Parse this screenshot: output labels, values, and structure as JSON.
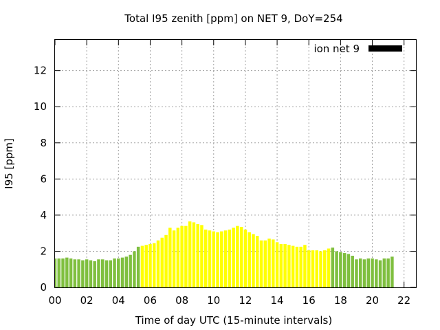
{
  "chart_data": {
    "type": "bar",
    "title": "Total I95 zenith [ppm] on NET 9, DoY=254",
    "xlabel": "Time of day UTC (15-minute intervals)",
    "ylabel": "I95 [ppm]",
    "xlim": [
      0,
      22.75
    ],
    "ylim": [
      0,
      13.7
    ],
    "xticks": [
      "00",
      "02",
      "04",
      "06",
      "08",
      "10",
      "12",
      "14",
      "16",
      "18",
      "20",
      "22"
    ],
    "yticks": [
      "0",
      "2",
      "4",
      "6",
      "8",
      "10",
      "12"
    ],
    "grid": true,
    "legend": {
      "position": "top-right",
      "label": "ion net 9",
      "color": "#000000"
    },
    "colors": {
      "low": "#7fbf3f",
      "high": "#ffff00"
    },
    "bar_interval_hours": 0.25,
    "x_start": 0,
    "values": [
      1.6,
      1.6,
      1.6,
      1.65,
      1.6,
      1.55,
      1.55,
      1.5,
      1.55,
      1.5,
      1.45,
      1.55,
      1.55,
      1.5,
      1.5,
      1.6,
      1.6,
      1.65,
      1.7,
      1.8,
      2.0,
      2.25,
      2.3,
      2.35,
      2.4,
      2.45,
      2.6,
      2.75,
      2.9,
      3.3,
      3.15,
      3.3,
      3.4,
      3.4,
      3.65,
      3.6,
      3.5,
      3.45,
      3.2,
      3.15,
      3.1,
      3.05,
      3.1,
      3.15,
      3.2,
      3.3,
      3.4,
      3.35,
      3.2,
      3.05,
      2.95,
      2.85,
      2.6,
      2.6,
      2.7,
      2.65,
      2.5,
      2.4,
      2.4,
      2.35,
      2.3,
      2.25,
      2.25,
      2.35,
      2.05,
      2.05,
      2.05,
      2.0,
      2.05,
      2.15,
      2.2,
      2.0,
      1.95,
      1.9,
      1.85,
      1.75,
      1.55,
      1.6,
      1.55,
      1.6,
      1.6,
      1.55,
      1.5,
      1.6,
      1.6,
      1.7
    ],
    "high_range_index": [
      22,
      70
    ]
  }
}
